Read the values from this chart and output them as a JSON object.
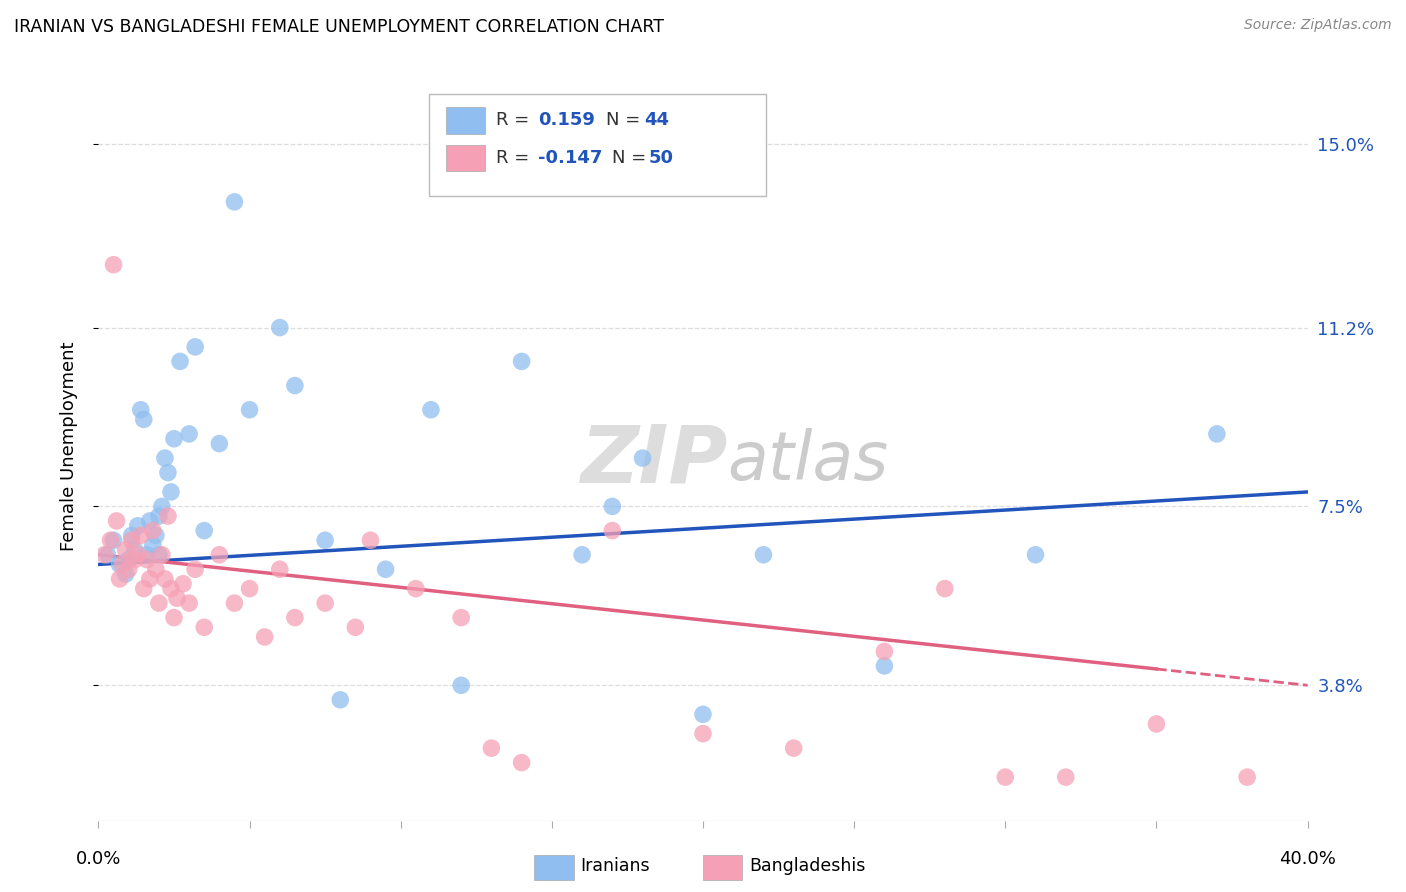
{
  "title": "IRANIAN VS BANGLADESHI FEMALE UNEMPLOYMENT CORRELATION CHART",
  "source": "Source: ZipAtlas.com",
  "ylabel": "Female Unemployment",
  "ytick_labels": [
    "3.8%",
    "7.5%",
    "11.2%",
    "15.0%"
  ],
  "ytick_values": [
    3.8,
    7.5,
    11.2,
    15.0
  ],
  "xlim": [
    0.0,
    40.0
  ],
  "ylim": [
    1.0,
    16.5
  ],
  "watermark_zip": "ZIP",
  "watermark_atlas": "atlas",
  "iranian_color": "#90BEF0",
  "bangladeshi_color": "#F5A0B5",
  "trend_iranian_color": "#2255BB",
  "trend_bangladeshi_color": "#E06080",
  "background_color": "#FFFFFF",
  "grid_color": "#DDDDDD",
  "iranians_x": [
    0.3,
    0.5,
    0.7,
    0.9,
    1.0,
    1.1,
    1.2,
    1.3,
    1.4,
    1.5,
    1.6,
    1.7,
    1.8,
    1.9,
    2.0,
    2.0,
    2.1,
    2.2,
    2.3,
    2.4,
    2.5,
    2.7,
    3.0,
    3.2,
    3.5,
    4.0,
    4.5,
    5.0,
    6.0,
    6.5,
    7.5,
    8.0,
    9.5,
    11.0,
    12.0,
    14.0,
    16.0,
    17.0,
    18.0,
    20.0,
    22.0,
    26.0,
    31.0,
    37.0
  ],
  "iranians_y": [
    6.5,
    6.8,
    6.3,
    6.1,
    6.4,
    6.9,
    6.6,
    7.1,
    9.5,
    9.3,
    6.5,
    7.2,
    6.7,
    6.9,
    6.5,
    7.3,
    7.5,
    8.5,
    8.2,
    7.8,
    8.9,
    10.5,
    9.0,
    10.8,
    7.0,
    8.8,
    13.8,
    9.5,
    11.2,
    10.0,
    6.8,
    3.5,
    6.2,
    9.5,
    3.8,
    10.5,
    6.5,
    7.5,
    8.5,
    3.2,
    6.5,
    4.2,
    6.5,
    9.0
  ],
  "bangladeshis_x": [
    0.2,
    0.4,
    0.5,
    0.6,
    0.7,
    0.8,
    0.9,
    1.0,
    1.1,
    1.2,
    1.3,
    1.4,
    1.5,
    1.6,
    1.7,
    1.8,
    1.9,
    2.0,
    2.1,
    2.2,
    2.3,
    2.4,
    2.5,
    2.6,
    2.8,
    3.0,
    3.2,
    3.5,
    4.0,
    4.5,
    5.0,
    5.5,
    6.0,
    6.5,
    7.5,
    8.5,
    9.0,
    10.5,
    12.0,
    13.0,
    14.0,
    17.0,
    20.0,
    23.0,
    26.0,
    28.0,
    30.0,
    32.0,
    35.0,
    38.0
  ],
  "bangladeshis_y": [
    6.5,
    6.8,
    12.5,
    7.2,
    6.0,
    6.3,
    6.6,
    6.2,
    6.8,
    6.4,
    6.5,
    6.9,
    5.8,
    6.4,
    6.0,
    7.0,
    6.2,
    5.5,
    6.5,
    6.0,
    7.3,
    5.8,
    5.2,
    5.6,
    5.9,
    5.5,
    6.2,
    5.0,
    6.5,
    5.5,
    5.8,
    4.8,
    6.2,
    5.2,
    5.5,
    5.0,
    6.8,
    5.8,
    5.2,
    2.5,
    2.2,
    7.0,
    2.8,
    2.5,
    4.5,
    5.8,
    1.9,
    1.9,
    3.0,
    1.9
  ],
  "trend_iranian_x0": 0.0,
  "trend_iranian_x1": 40.0,
  "trend_iranian_y0": 6.3,
  "trend_iranian_y1": 7.8,
  "trend_bangladeshi_x0": 0.0,
  "trend_bangladeshi_x1": 40.0,
  "trend_bangladeshi_y0": 6.5,
  "trend_bangladeshi_y1": 3.8,
  "trend_bangladeshi_solid_end": 35.0
}
